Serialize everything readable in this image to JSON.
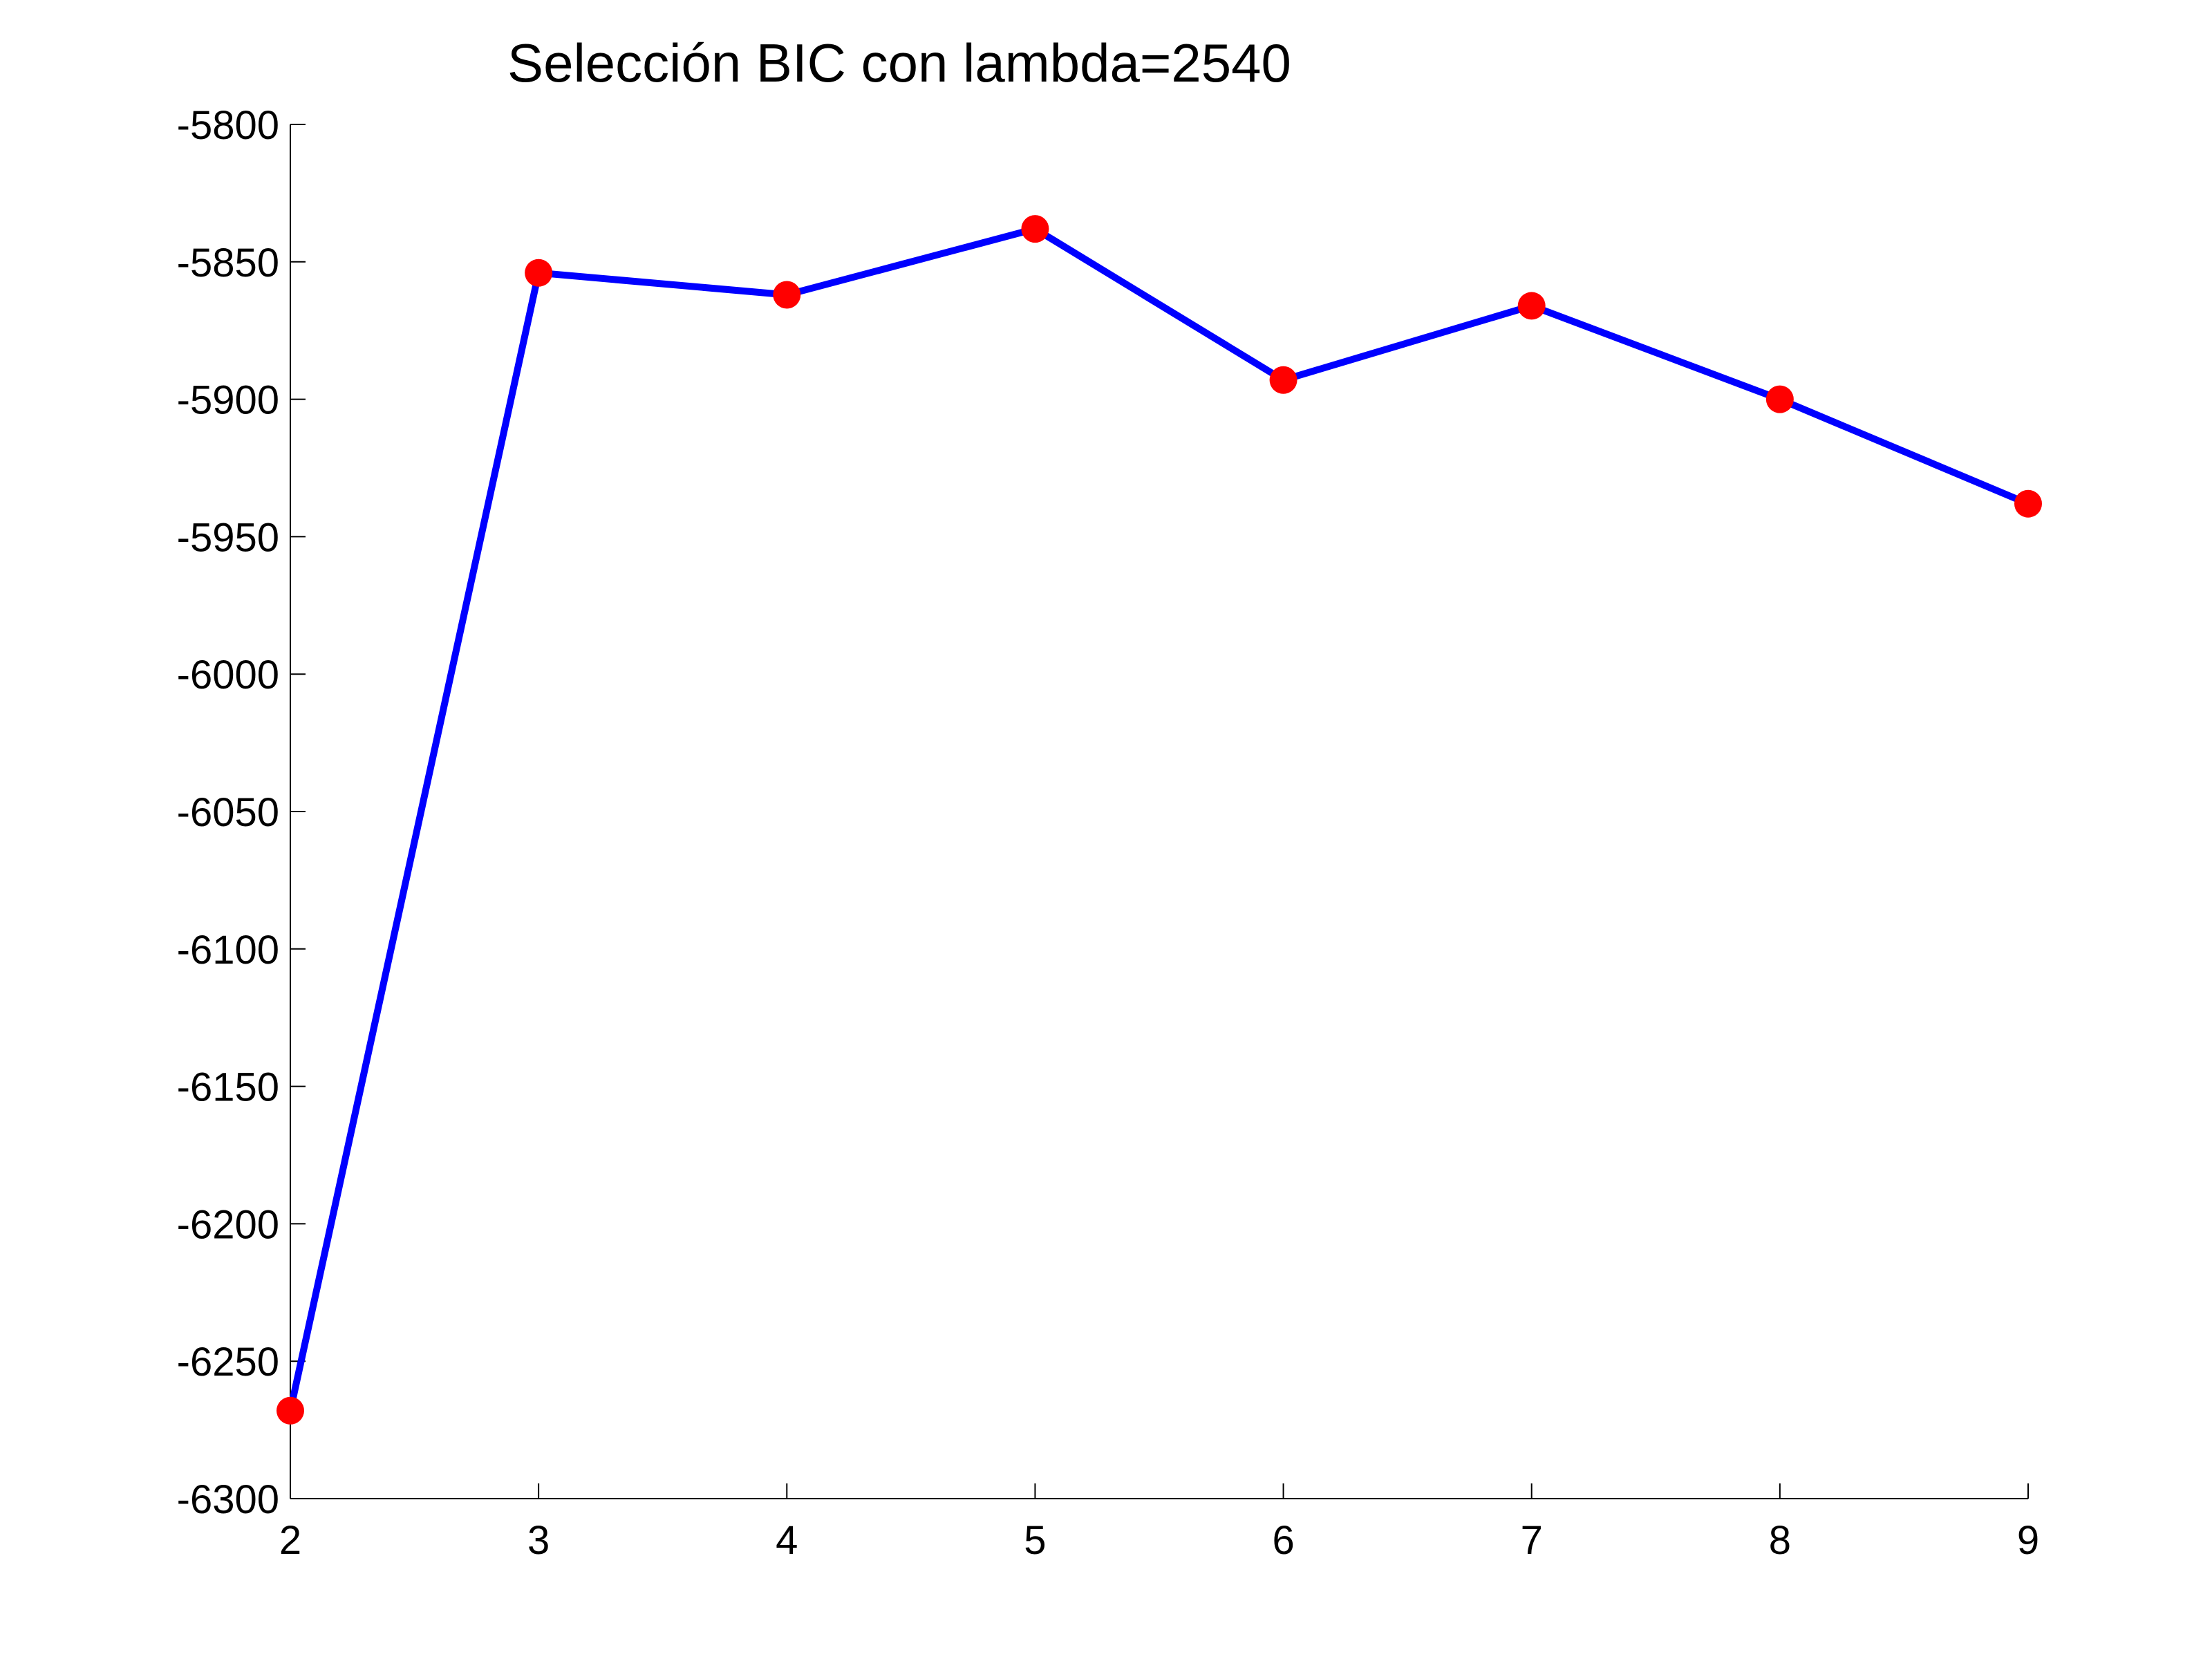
{
  "chart_data": {
    "type": "line",
    "title": "Selección BIC con lambda=2540",
    "xlabel": "",
    "ylabel": "",
    "x": [
      2,
      3,
      4,
      5,
      6,
      7,
      8,
      9
    ],
    "series": [
      {
        "values": [
          -6268,
          -5854,
          -5862,
          -5838,
          -5893,
          -5866,
          -5900,
          -5938
        ]
      }
    ],
    "xlim": [
      2,
      9
    ],
    "ylim": [
      -6300,
      -5800
    ],
    "xticks": [
      2,
      3,
      4,
      5,
      6,
      7,
      8,
      9
    ],
    "yticks": [
      -5800,
      -5850,
      -5900,
      -5950,
      -6000,
      -6050,
      -6100,
      -6150,
      -6200,
      -6250,
      -6300
    ],
    "grid": false,
    "line_color": "#0000ff",
    "marker_color": "#ff0000",
    "marker": "filled-circle"
  }
}
